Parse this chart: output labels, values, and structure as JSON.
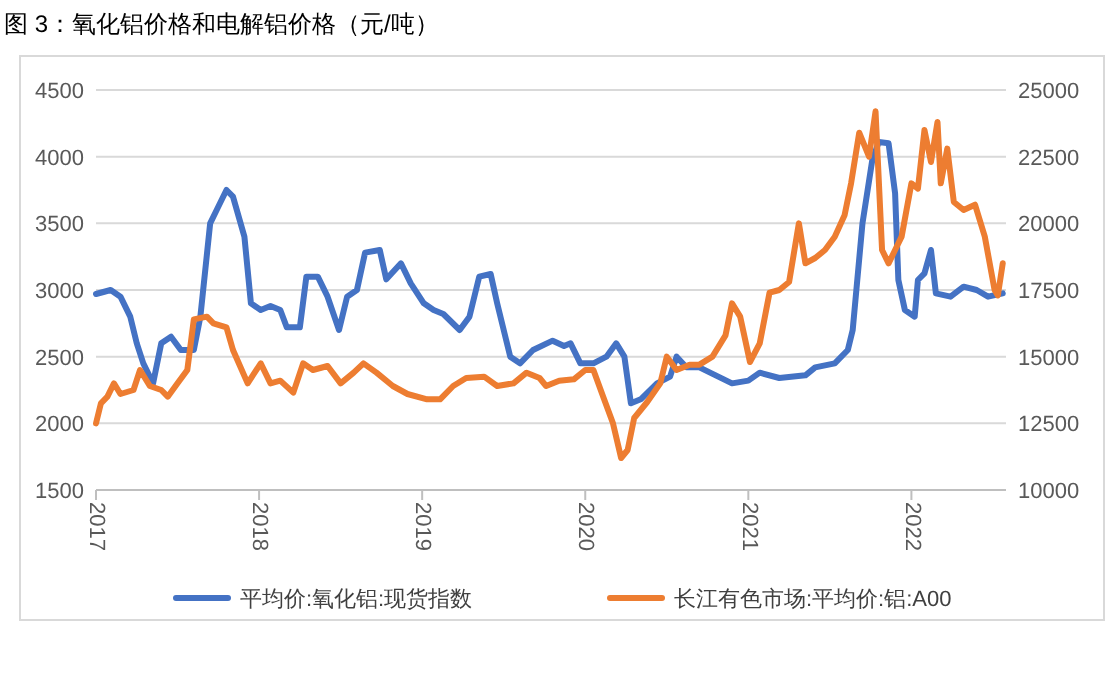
{
  "chart_data": {
    "type": "line",
    "title": "图 3：氧化铝价格和电解铝价格（元/吨）",
    "xlim": [
      2017,
      2022.58
    ],
    "xticks": [
      2017,
      2018,
      2019,
      2020,
      2021,
      2022
    ],
    "ylim": [
      1500,
      4500
    ],
    "yticks": [
      1500,
      2000,
      2500,
      3000,
      3500,
      4000,
      4500
    ],
    "y2lim": [
      10000,
      25000
    ],
    "y2ticks": [
      10000,
      12500,
      15000,
      17500,
      20000,
      22500,
      25000
    ],
    "grid": "y",
    "legend": "bottom",
    "marker": "none",
    "line_style": "solid",
    "series": [
      {
        "name": "平均价:氧化铝:现货指数",
        "color": "#4472c4",
        "axis": "y",
        "x": [
          2017,
          2017.09,
          2017.15,
          2017.21,
          2017.25,
          2017.29,
          2017.35,
          2017.4,
          2017.46,
          2017.52,
          2017.6,
          2017.64,
          2017.7,
          2017.74,
          2017.8,
          2017.84,
          2017.91,
          2017.95,
          2018.01,
          2018.07,
          2018.13,
          2018.17,
          2018.25,
          2018.29,
          2018.36,
          2018.42,
          2018.49,
          2018.54,
          2018.6,
          2018.65,
          2018.74,
          2018.78,
          2018.87,
          2018.93,
          2019.01,
          2019.07,
          2019.13,
          2019.23,
          2019.29,
          2019.35,
          2019.42,
          2019.46,
          2019.54,
          2019.6,
          2019.68,
          2019.8,
          2019.87,
          2019.91,
          2019.97,
          2020.05,
          2020.13,
          2020.19,
          2020.24,
          2020.28,
          2020.34,
          2020.44,
          2020.52,
          2020.56,
          2020.62,
          2020.7,
          2020.9,
          2021,
          2021.07,
          2021.19,
          2021.35,
          2021.41,
          2021.53,
          2021.61,
          2021.64,
          2021.7,
          2021.76,
          2021.8,
          2021.86,
          2021.9,
          2021.92,
          2021.96,
          2022.02,
          2022.04,
          2022.08,
          2022.12,
          2022.15,
          2022.24,
          2022.32,
          2022.4,
          2022.47,
          2022.56
        ],
        "values": [
          2970,
          3000,
          2950,
          2800,
          2600,
          2450,
          2300,
          2600,
          2650,
          2550,
          2550,
          2800,
          3500,
          3600,
          3750,
          3700,
          3400,
          2900,
          2850,
          2880,
          2850,
          2720,
          2720,
          3100,
          3100,
          2950,
          2700,
          2950,
          3000,
          3280,
          3300,
          3080,
          3200,
          3050,
          2900,
          2850,
          2820,
          2700,
          2800,
          3100,
          3120,
          2900,
          2500,
          2450,
          2550,
          2620,
          2580,
          2600,
          2450,
          2450,
          2500,
          2600,
          2500,
          2150,
          2180,
          2300,
          2350,
          2500,
          2420,
          2420,
          2300,
          2320,
          2380,
          2340,
          2360,
          2420,
          2450,
          2550,
          2700,
          3500,
          3975,
          4110,
          4100,
          3725,
          3075,
          2850,
          2800,
          3075,
          3125,
          3300,
          2975,
          2950,
          3025,
          3000,
          2950,
          2975
        ]
      },
      {
        "name": "长江有色市场:平均价:铝:A00",
        "color": "#ed7d31",
        "axis": "y2",
        "x": [
          2017,
          2017.03,
          2017.07,
          2017.11,
          2017.15,
          2017.23,
          2017.27,
          2017.33,
          2017.4,
          2017.44,
          2017.5,
          2017.56,
          2017.6,
          2017.68,
          2017.72,
          2017.8,
          2017.84,
          2017.93,
          2018.01,
          2018.07,
          2018.13,
          2018.21,
          2018.27,
          2018.33,
          2018.42,
          2018.5,
          2018.58,
          2018.64,
          2018.72,
          2018.82,
          2018.91,
          2019.03,
          2019.11,
          2019.19,
          2019.27,
          2019.38,
          2019.46,
          2019.56,
          2019.64,
          2019.72,
          2019.76,
          2019.84,
          2019.93,
          2020,
          2020.05,
          2020.11,
          2020.17,
          2020.22,
          2020.26,
          2020.3,
          2020.38,
          2020.46,
          2020.5,
          2020.56,
          2020.64,
          2020.7,
          2020.78,
          2020.86,
          2020.9,
          2020.95,
          2021.01,
          2021.07,
          2021.13,
          2021.19,
          2021.25,
          2021.31,
          2021.35,
          2021.41,
          2021.47,
          2021.53,
          2021.59,
          2021.63,
          2021.68,
          2021.74,
          2021.78,
          2021.82,
          2021.86,
          2021.9,
          2021.94,
          2022,
          2022.04,
          2022.08,
          2022.12,
          2022.16,
          2022.18,
          2022.22,
          2022.26,
          2022.32,
          2022.39,
          2022.45,
          2022.51,
          2022.53,
          2022.56
        ],
        "values": [
          12500,
          13250,
          13500,
          14000,
          13600,
          13750,
          14500,
          13900,
          13750,
          13500,
          14000,
          14500,
          16400,
          16500,
          16250,
          16100,
          15250,
          14000,
          14750,
          14000,
          14100,
          13650,
          14750,
          14500,
          14650,
          14000,
          14400,
          14750,
          14400,
          13900,
          13600,
          13400,
          13400,
          13900,
          14200,
          14250,
          13900,
          14000,
          14400,
          14200,
          13900,
          14100,
          14150,
          14500,
          14500,
          13500,
          12500,
          11200,
          11500,
          12700,
          13300,
          14000,
          15000,
          14500,
          14700,
          14700,
          15000,
          15800,
          17000,
          16500,
          14800,
          15500,
          17400,
          17500,
          17800,
          20000,
          18500,
          18700,
          19000,
          19500,
          20300,
          21500,
          23400,
          22500,
          24200,
          19000,
          18500,
          19000,
          19500,
          21500,
          21300,
          23500,
          22300,
          23800,
          21500,
          22800,
          20800,
          20500,
          20700,
          19500,
          17500,
          17300,
          18500
        ]
      }
    ]
  }
}
